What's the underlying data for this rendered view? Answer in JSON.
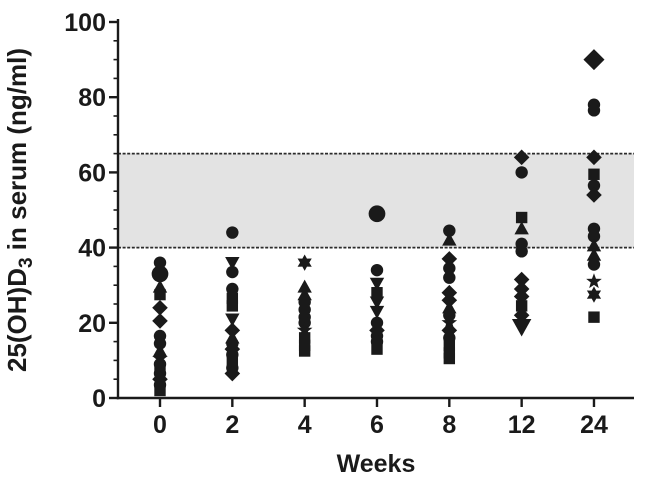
{
  "figure": {
    "background_color": "#ffffff"
  },
  "chart_data": {
    "type": "scatter",
    "title": "",
    "xlabel": "Weeks",
    "ylabel": "25(OH)D3 in serum (ng/ml)",
    "ylabel_parts": [
      {
        "t": "25(OH)D",
        "sub": false
      },
      {
        "t": "3",
        "sub": true
      },
      {
        "t": " in serum (ng/ml)",
        "sub": false
      }
    ],
    "x_categories": [
      "0",
      "2",
      "4",
      "6",
      "8",
      "12",
      "24"
    ],
    "ylim": [
      0,
      100
    ],
    "y_major_ticks": [
      0,
      20,
      40,
      60,
      80,
      100
    ],
    "y_minor_step": 5,
    "grid": "off",
    "legend": "none",
    "reference_band": {
      "from": 40,
      "to": 65
    },
    "colors": {
      "marker": "#1a1a1a",
      "band_fill": "#e3e3e3",
      "band_border": "#2b2b2b",
      "axis": "#1a1a1a",
      "background": "#ffffff"
    },
    "series": [
      {
        "week": "0",
        "points": [
          {
            "v": 36,
            "m": "circle"
          },
          {
            "v": 33,
            "m": "circle",
            "big": true
          },
          {
            "v": 29.5,
            "m": "triangle-up"
          },
          {
            "v": 27.5,
            "m": "square"
          },
          {
            "v": 24,
            "m": "diamond"
          },
          {
            "v": 20.5,
            "m": "diamond"
          },
          {
            "v": 16.5,
            "m": "circle"
          },
          {
            "v": 14.5,
            "m": "circle"
          },
          {
            "v": 12.5,
            "m": "triangle-up"
          },
          {
            "v": 10.5,
            "m": "star5"
          },
          {
            "v": 9,
            "m": "circle"
          },
          {
            "v": 8,
            "m": "square"
          },
          {
            "v": 6.5,
            "m": "circle"
          },
          {
            "v": 5,
            "m": "diamond"
          },
          {
            "v": 3.5,
            "m": "circle"
          },
          {
            "v": 2,
            "m": "square"
          }
        ]
      },
      {
        "week": "2",
        "points": [
          {
            "v": 44,
            "m": "circle"
          },
          {
            "v": 36,
            "m": "triangle-down"
          },
          {
            "v": 33.5,
            "m": "circle"
          },
          {
            "v": 29,
            "m": "circle"
          },
          {
            "v": 26.5,
            "m": "square"
          },
          {
            "v": 24.5,
            "m": "square"
          },
          {
            "v": 21,
            "m": "triangle-down"
          },
          {
            "v": 18,
            "m": "diamond"
          },
          {
            "v": 16,
            "m": "triangle-up"
          },
          {
            "v": 14.5,
            "m": "circle"
          },
          {
            "v": 13,
            "m": "diamond"
          },
          {
            "v": 11.5,
            "m": "circle"
          },
          {
            "v": 10,
            "m": "square"
          },
          {
            "v": 8,
            "m": "circle"
          },
          {
            "v": 6.5,
            "m": "diamond"
          }
        ]
      },
      {
        "week": "4",
        "points": [
          {
            "v": 36,
            "m": "star6"
          },
          {
            "v": 29.5,
            "m": "triangle-up"
          },
          {
            "v": 27.5,
            "m": "triangle-up"
          },
          {
            "v": 25.5,
            "m": "circle"
          },
          {
            "v": 23.5,
            "m": "circle"
          },
          {
            "v": 21.5,
            "m": "circle"
          },
          {
            "v": 20,
            "m": "circle"
          },
          {
            "v": 18,
            "m": "star5"
          },
          {
            "v": 16,
            "m": "square"
          },
          {
            "v": 14,
            "m": "square"
          },
          {
            "v": 12.5,
            "m": "square"
          }
        ]
      },
      {
        "week": "6",
        "points": [
          {
            "v": 49,
            "m": "circle",
            "big": true
          },
          {
            "v": 34,
            "m": "circle"
          },
          {
            "v": 30.5,
            "m": "triangle-down"
          },
          {
            "v": 28,
            "m": "square"
          },
          {
            "v": 25.5,
            "m": "triangle-down"
          },
          {
            "v": 23,
            "m": "triangle-down"
          },
          {
            "v": 20,
            "m": "circle"
          },
          {
            "v": 18,
            "m": "diamond"
          },
          {
            "v": 16.5,
            "m": "circle"
          },
          {
            "v": 15,
            "m": "circle"
          },
          {
            "v": 13,
            "m": "square"
          }
        ]
      },
      {
        "week": "8",
        "points": [
          {
            "v": 44.5,
            "m": "circle"
          },
          {
            "v": 42,
            "m": "triangle-up"
          },
          {
            "v": 37,
            "m": "diamond"
          },
          {
            "v": 34.5,
            "m": "circle"
          },
          {
            "v": 32,
            "m": "circle"
          },
          {
            "v": 28,
            "m": "diamond"
          },
          {
            "v": 26,
            "m": "diamond"
          },
          {
            "v": 24,
            "m": "triangle-up"
          },
          {
            "v": 22,
            "m": "circle"
          },
          {
            "v": 20,
            "m": "star5"
          },
          {
            "v": 18,
            "m": "diamond"
          },
          {
            "v": 16,
            "m": "circle"
          },
          {
            "v": 14,
            "m": "square"
          },
          {
            "v": 12,
            "m": "square"
          },
          {
            "v": 10.5,
            "m": "square"
          }
        ]
      },
      {
        "week": "12",
        "points": [
          {
            "v": 64,
            "m": "diamond"
          },
          {
            "v": 60,
            "m": "circle"
          },
          {
            "v": 48,
            "m": "square"
          },
          {
            "v": 45,
            "m": "triangle-up"
          },
          {
            "v": 41,
            "m": "circle"
          },
          {
            "v": 39,
            "m": "circle"
          },
          {
            "v": 31.5,
            "m": "diamond"
          },
          {
            "v": 29,
            "m": "diamond"
          },
          {
            "v": 27,
            "m": "diamond"
          },
          {
            "v": 24.5,
            "m": "square"
          },
          {
            "v": 22,
            "m": "diamond"
          },
          {
            "v": 19,
            "m": "triangle-down",
            "big": true
          }
        ]
      },
      {
        "week": "24",
        "points": [
          {
            "v": 90,
            "m": "diamond",
            "big": true
          },
          {
            "v": 78,
            "m": "circle"
          },
          {
            "v": 76.5,
            "m": "circle"
          },
          {
            "v": 64,
            "m": "diamond"
          },
          {
            "v": 59.5,
            "m": "square"
          },
          {
            "v": 56.5,
            "m": "circle"
          },
          {
            "v": 54,
            "m": "diamond"
          },
          {
            "v": 45,
            "m": "circle"
          },
          {
            "v": 43,
            "m": "circle"
          },
          {
            "v": 40.5,
            "m": "triangle-up"
          },
          {
            "v": 38,
            "m": "triangle-up"
          },
          {
            "v": 35.5,
            "m": "circle"
          },
          {
            "v": 31,
            "m": "star5"
          },
          {
            "v": 27.5,
            "m": "star6"
          },
          {
            "v": 21.5,
            "m": "square"
          }
        ]
      }
    ]
  }
}
